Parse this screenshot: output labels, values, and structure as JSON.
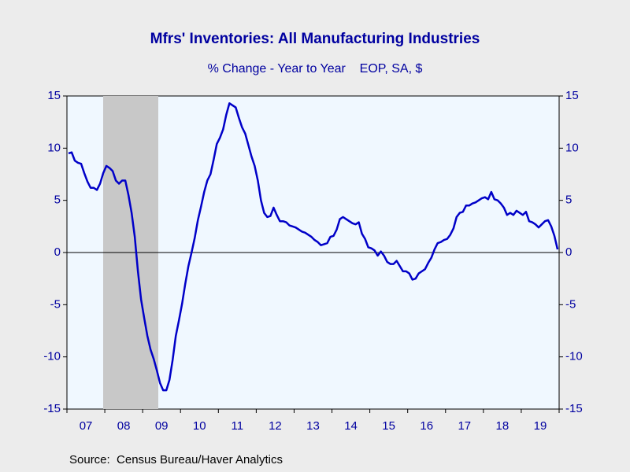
{
  "chart_data": {
    "type": "line",
    "title": "Mfrs' Inventories: All Manufacturing Industries",
    "subtitle": "% Change - Year to Year    EOP, SA, $",
    "source": "Source:  Census Bureau/Haver Analytics",
    "categories": [
      null,
      null,
      null,
      null,
      null,
      "07",
      null,
      null,
      null,
      null,
      null,
      null,
      null,
      null,
      null,
      null,
      null,
      "08",
      null,
      null,
      null,
      null,
      null,
      null,
      null,
      null,
      null,
      null,
      null,
      "09",
      null,
      null,
      null,
      null,
      null,
      null,
      null,
      null,
      null,
      null,
      null,
      "10",
      null,
      null,
      null,
      null,
      null,
      null,
      null,
      null,
      null,
      null,
      null,
      "11",
      null,
      null,
      null,
      null,
      null,
      null,
      null,
      null,
      null,
      null,
      null,
      "12",
      null,
      null,
      null,
      null,
      null,
      null,
      null,
      null,
      null,
      null,
      null,
      "13",
      null,
      null,
      null,
      null,
      null,
      null,
      null,
      null,
      null,
      null,
      null,
      "14",
      null,
      null,
      null,
      null,
      null,
      null,
      null,
      null,
      null,
      null,
      null,
      "15",
      null,
      null,
      null,
      null,
      null,
      null,
      null,
      null,
      null,
      null,
      null,
      "16",
      null,
      null,
      null,
      null,
      null,
      null,
      null,
      null,
      null,
      null,
      null,
      "17",
      null,
      null,
      null,
      null,
      null,
      null,
      null,
      null,
      null,
      null,
      null,
      "18",
      null,
      null,
      null,
      null,
      null,
      null,
      null,
      null,
      null,
      null,
      null,
      "19",
      null,
      null,
      null,
      null,
      null,
      null
    ],
    "series": [
      {
        "name": "Mfrs' Inventories",
        "color": "#0000c8",
        "values": [
          9.5,
          9.6,
          8.8,
          8.6,
          8.5,
          7.6,
          6.8,
          6.2,
          6.2,
          6.0,
          6.6,
          7.6,
          8.3,
          8.1,
          7.8,
          6.9,
          6.6,
          6.9,
          6.9,
          5.5,
          3.8,
          1.5,
          -1.8,
          -4.5,
          -6.3,
          -8.0,
          -9.3,
          -10.2,
          -11.3,
          -12.5,
          -13.2,
          -13.2,
          -12.2,
          -10.3,
          -8.0,
          -6.5,
          -4.9,
          -3.0,
          -1.3,
          0.0,
          1.4,
          3.1,
          4.4,
          5.8,
          6.9,
          7.5,
          8.9,
          10.4,
          11.0,
          11.8,
          13.2,
          14.3,
          14.1,
          13.9,
          12.9,
          12.0,
          11.4,
          10.3,
          9.2,
          8.3,
          6.9,
          5.0,
          3.8,
          3.4,
          3.5,
          4.3,
          3.6,
          3.0,
          3.0,
          2.9,
          2.6,
          2.5,
          2.4,
          2.2,
          2.0,
          1.9,
          1.7,
          1.5,
          1.2,
          1.0,
          0.7,
          0.8,
          0.9,
          1.5,
          1.6,
          2.2,
          3.2,
          3.4,
          3.2,
          3.0,
          2.8,
          2.7,
          2.9,
          1.8,
          1.3,
          0.5,
          0.4,
          0.2,
          -0.3,
          0.1,
          -0.3,
          -0.9,
          -1.1,
          -1.1,
          -0.8,
          -1.3,
          -1.8,
          -1.8,
          -2.0,
          -2.6,
          -2.5,
          -2.0,
          -1.8,
          -1.6,
          -1.0,
          -0.5,
          0.3,
          0.9,
          1.0,
          1.2,
          1.3,
          1.7,
          2.3,
          3.4,
          3.8,
          3.9,
          4.5,
          4.5,
          4.7,
          4.8,
          5.0,
          5.2,
          5.3,
          5.1,
          5.8,
          5.1,
          5.0,
          4.7,
          4.3,
          3.6,
          3.8,
          3.6,
          4.0,
          3.8,
          3.6,
          3.9,
          3.0,
          2.9,
          2.7,
          2.4,
          2.7,
          3.0,
          3.1,
          2.5,
          1.6,
          0.3
        ]
      }
    ],
    "ylim": [
      -15,
      15
    ],
    "yticks": [
      -15,
      -10,
      -5,
      0,
      5,
      10,
      15
    ],
    "y2lim": [
      -15,
      15
    ],
    "y2ticks": [
      -15,
      -10,
      -5,
      0,
      5,
      10,
      15
    ],
    "grid": false
  }
}
